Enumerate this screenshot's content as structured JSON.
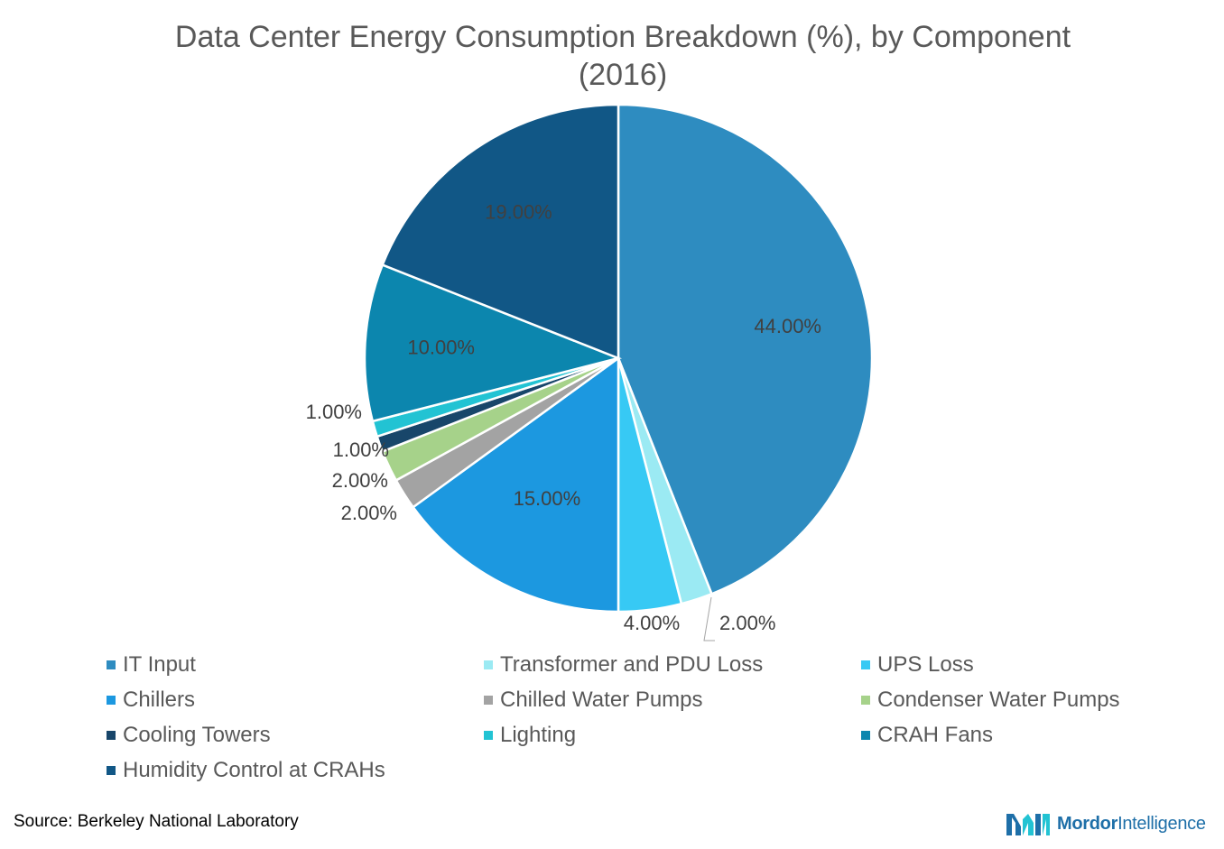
{
  "chart_data": {
    "type": "pie",
    "title": "Data Center Energy Consumption Breakdown (%), by Component (2016)",
    "start_angle_deg": 0,
    "slices": [
      {
        "name": "IT Input",
        "value": 44,
        "label": "44.00%",
        "color": "#2e8cc0"
      },
      {
        "name": "Transformer and PDU Loss",
        "value": 2,
        "label": "2.00%",
        "color": "#9beaf3"
      },
      {
        "name": "UPS Loss",
        "value": 4,
        "label": "4.00%",
        "color": "#37c9f4"
      },
      {
        "name": "Chillers",
        "value": 15,
        "label": "15.00%",
        "color": "#1c98e0"
      },
      {
        "name": "Chilled Water Pumps",
        "value": 2,
        "label": "2.00%",
        "color": "#a3a3a3"
      },
      {
        "name": "Condenser Water Pumps",
        "value": 2,
        "label": "2.00%",
        "color": "#a6d28a"
      },
      {
        "name": "Cooling Towers",
        "value": 1,
        "label": "1.00%",
        "color": "#18466a"
      },
      {
        "name": "Lighting",
        "value": 1,
        "label": "1.00%",
        "color": "#22c3d3"
      },
      {
        "name": "CRAH Fans",
        "value": 10,
        "label": "10.00%",
        "color": "#0c86ae"
      },
      {
        "name": "Humidity Control at CRAHs",
        "value": 19,
        "label": "19.00%",
        "color": "#115786"
      }
    ],
    "legend_position": "bottom"
  },
  "source": "Source: Berkeley National Laboratory",
  "logo": {
    "brand_bold": "Mordor",
    "brand_light": "Intelligence"
  }
}
